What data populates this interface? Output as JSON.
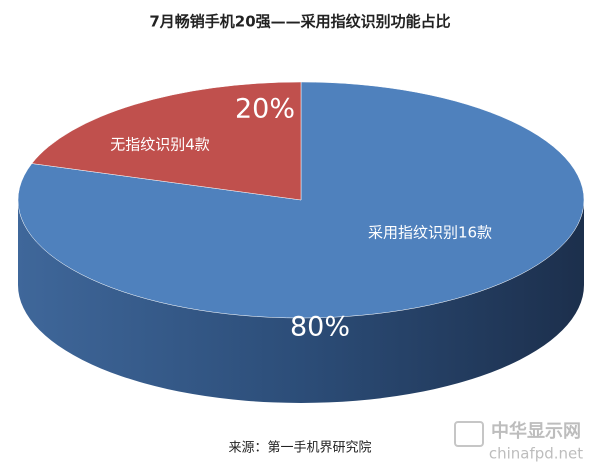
{
  "chart_data": {
    "type": "pie3d",
    "title": "7月畅销手机20强——采用指纹识别功能占比",
    "categories": [
      "采用指纹识别16款",
      "无指纹识别4款"
    ],
    "values": [
      80,
      20
    ],
    "value_labels": [
      "80%",
      "20%"
    ],
    "colors": [
      "#4f81bd",
      "#c0504d"
    ],
    "source": "来源：第一手机界研究院"
  },
  "watermark": {
    "name": "中华显示网",
    "url": "chinafpd.net"
  }
}
